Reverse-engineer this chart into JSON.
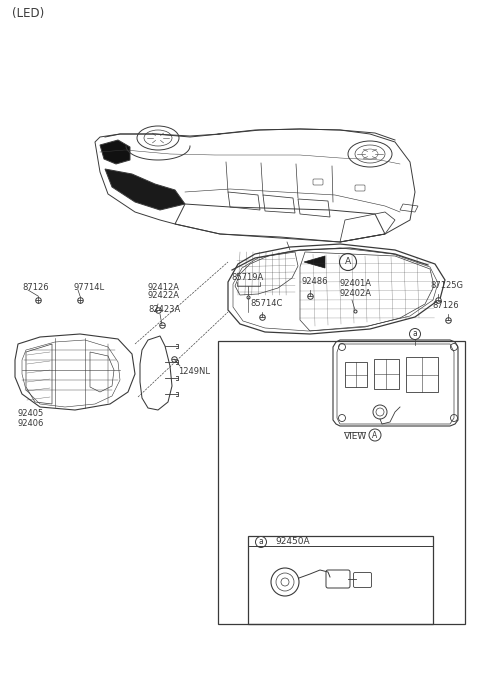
{
  "bg_color": "#ffffff",
  "lc": "#3a3a3a",
  "tc": "#3a3a3a",
  "title": "(LED)",
  "fs": 6.0,
  "fs_title": 8.5,
  "labels": {
    "87126_left": "87126",
    "97714L": "97714L",
    "92412A_92422A": "92412A\n92422A",
    "82423A": "82423A",
    "85719A": "85719A",
    "85714C": "85714C",
    "92486": "92486",
    "92401A_92402A": "92401A\n92402A",
    "87125G": "87125G",
    "87126_right": "87126",
    "92405_92406": "92405\n92406",
    "1249NL": "1249NL",
    "VIEW_A": "VIEW",
    "92450A": "92450A"
  }
}
